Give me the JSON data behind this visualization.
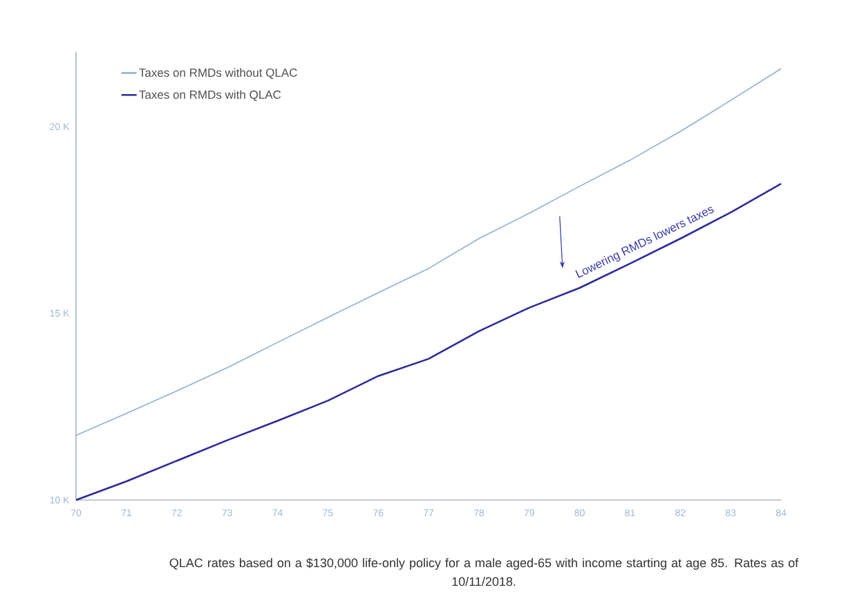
{
  "chart_data": {
    "type": "line",
    "x": [
      70,
      71,
      72,
      73,
      74,
      75,
      76,
      77,
      78,
      79,
      80,
      81,
      82,
      83,
      84
    ],
    "series": [
      {
        "name": "Taxes on RMDs without QLAC",
        "color": "#8fb0d0",
        "values": [
          11.73,
          12.32,
          12.92,
          13.54,
          14.22,
          14.89,
          15.55,
          16.2,
          17.0,
          17.68,
          18.4,
          19.1,
          19.87,
          20.7,
          21.55
        ]
      },
      {
        "name": "Taxes on RMDs with QLAC",
        "color": "#2b2b9a",
        "values": [
          10.0,
          10.5,
          11.05,
          11.6,
          12.12,
          12.66,
          13.32,
          13.78,
          14.52,
          15.15,
          15.68,
          16.33,
          17.0,
          17.7,
          18.47
        ]
      }
    ],
    "xlim": [
      70,
      84
    ],
    "xticks": [
      70,
      71,
      72,
      73,
      74,
      75,
      76,
      77,
      78,
      79,
      80,
      81,
      82,
      83,
      84
    ],
    "ylim": [
      10,
      22
    ],
    "yticks": [
      {
        "value": 10,
        "label": "10 K"
      },
      {
        "value": 15,
        "label": "15 K"
      },
      {
        "value": 20,
        "label": "20 K"
      }
    ],
    "legend": "top left",
    "grid": false,
    "marker": "none",
    "line_style": "solid",
    "annotations": [
      "Lowering RMDs lowers taxes",
      "QLAC rates based on a $130,000 life-only policy for a male aged-65 with income starting at age 85. Rates as of 10/11/2018."
    ]
  }
}
